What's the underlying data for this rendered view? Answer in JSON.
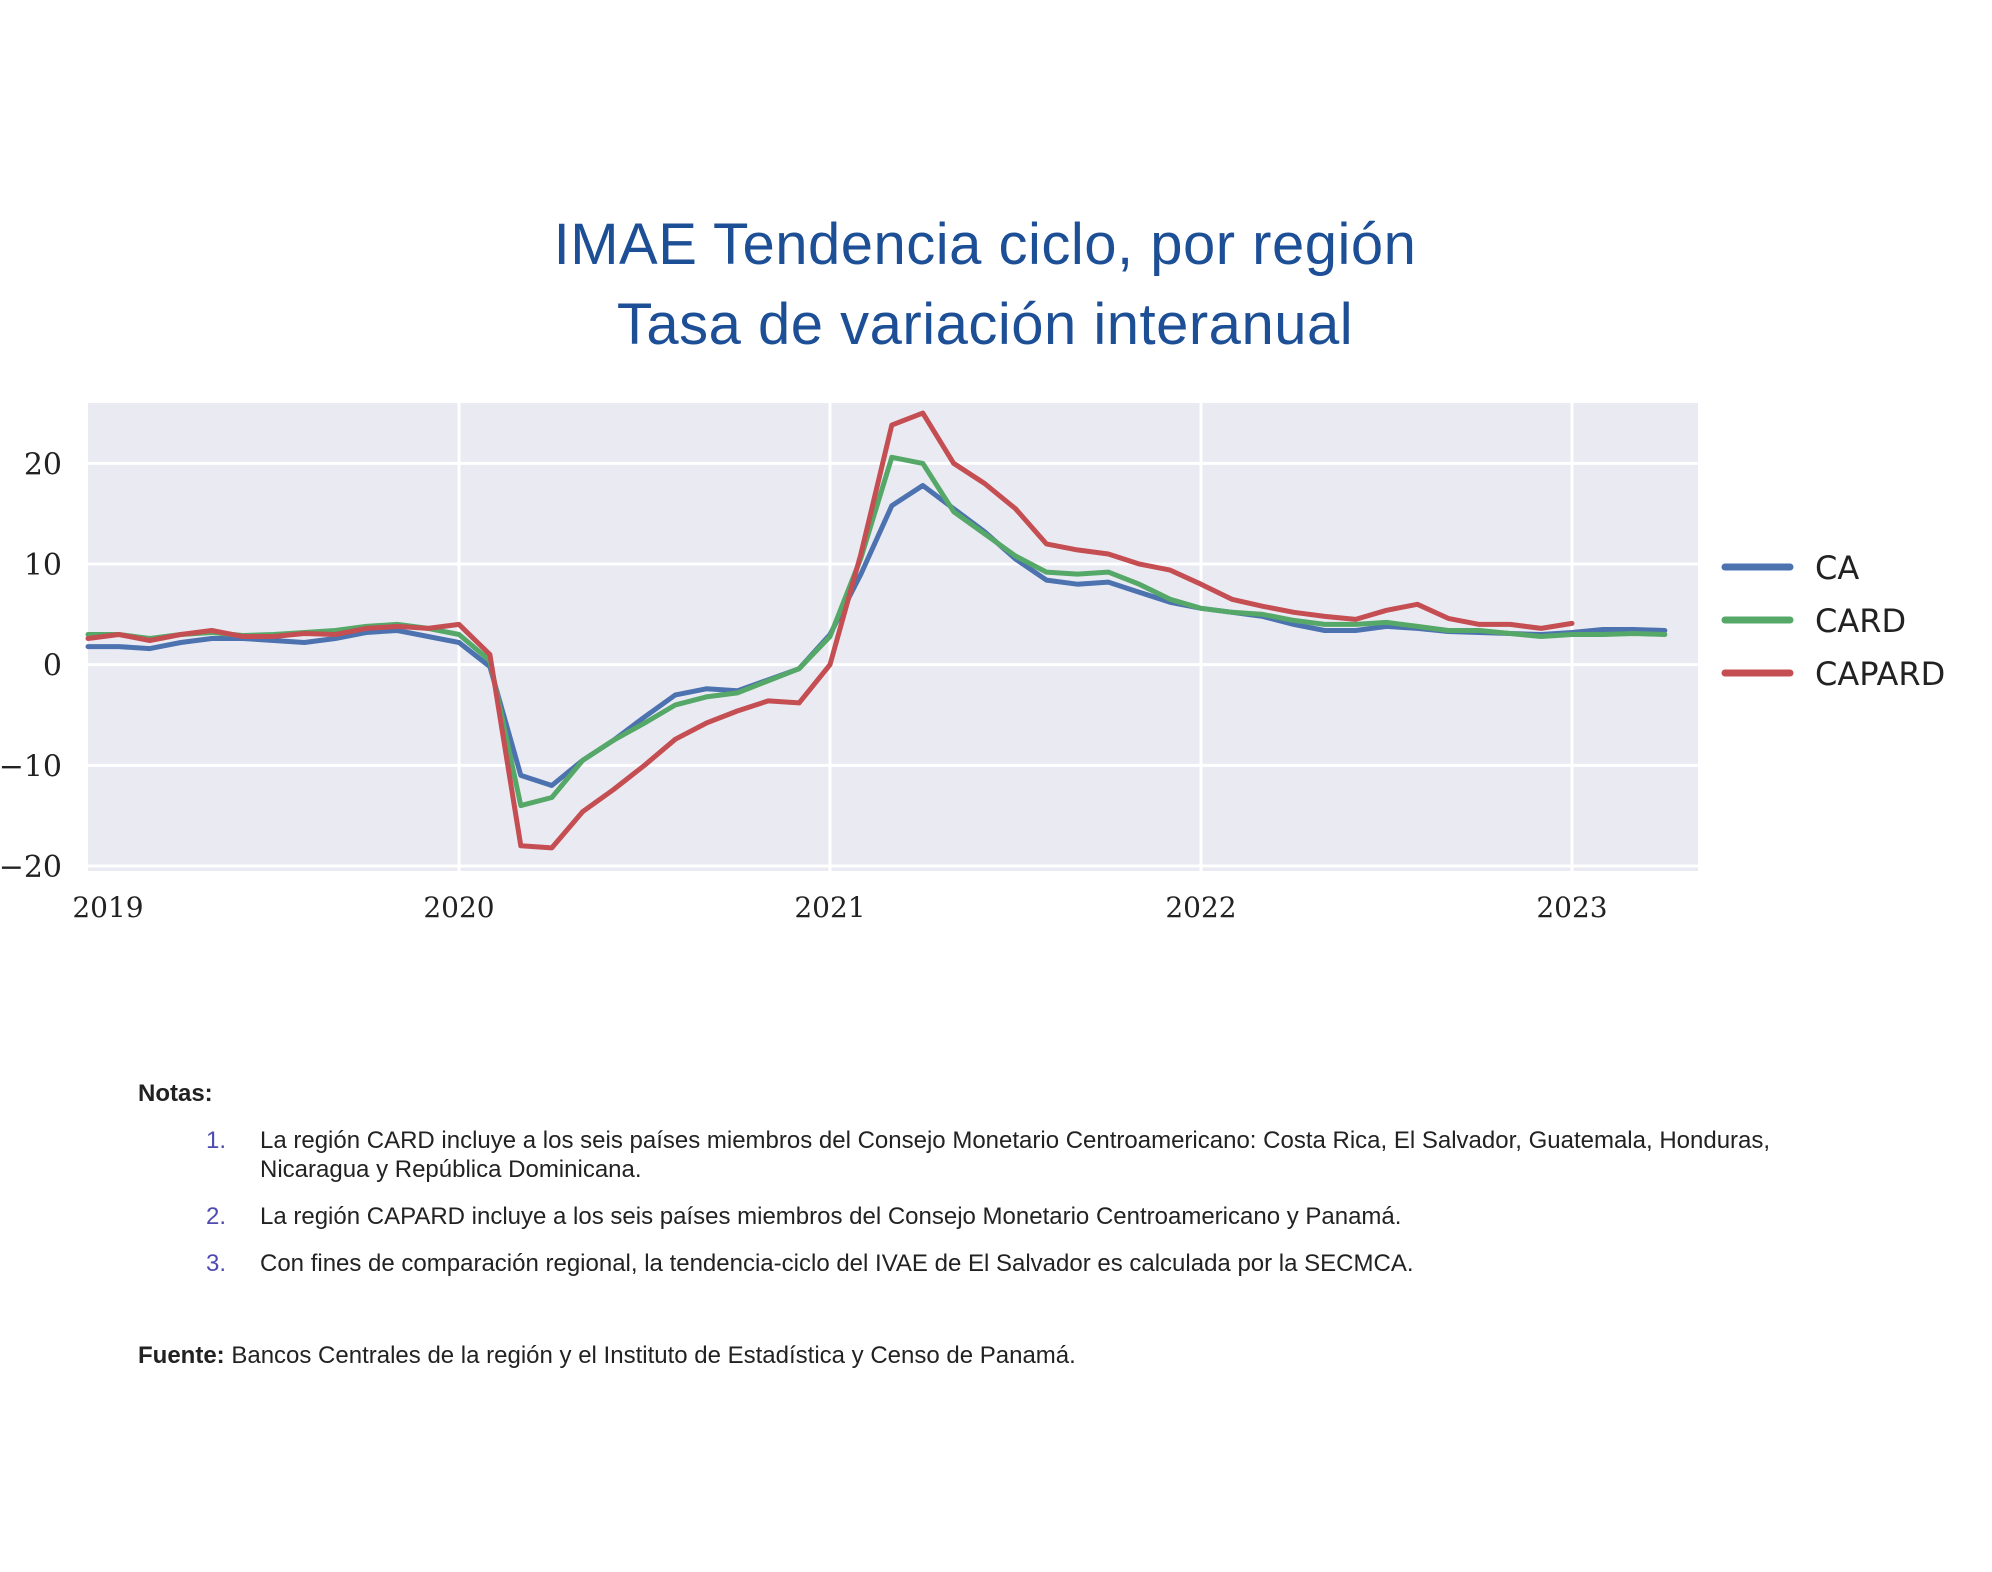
{
  "title_line1": "IMAE Tendencia ciclo, por región",
  "title_line2": "Tasa de variación interanual",
  "chart_data": {
    "type": "line",
    "x_start": "2019-01",
    "x_ticks": [
      "2019",
      "2020",
      "2021",
      "2022",
      "2023"
    ],
    "y_ticks": [
      "20",
      "10",
      "0",
      "−10",
      "−20"
    ],
    "ylim": [
      -20.5,
      26
    ],
    "grid": true,
    "legend_position": "right",
    "series": [
      {
        "name": "CA",
        "color": "#4c72b0",
        "values": [
          1.8,
          1.8,
          1.6,
          2.2,
          2.6,
          2.6,
          2.4,
          2.2,
          2.6,
          3.2,
          3.4,
          2.8,
          2.2,
          -0.2,
          -11.0,
          -12.0,
          -9.5,
          -7.5,
          -5.2,
          -3.0,
          -2.4,
          -2.6,
          -1.5,
          -0.4,
          3.0,
          9.0,
          15.8,
          17.8,
          15.5,
          13.2,
          10.5,
          8.4,
          8.0,
          8.2,
          7.2,
          6.2,
          5.6,
          5.2,
          4.8,
          4.0,
          3.4,
          3.4,
          3.8,
          3.6,
          3.3,
          3.2,
          3.1,
          3.0,
          3.2,
          3.5,
          3.5,
          3.4
        ]
      },
      {
        "name": "CARD",
        "color": "#55a868",
        "values": [
          3.0,
          3.0,
          2.6,
          3.0,
          3.2,
          2.9,
          3.0,
          3.2,
          3.4,
          3.8,
          4.0,
          3.6,
          3.0,
          0.4,
          -14.0,
          -13.2,
          -9.5,
          -7.5,
          -5.8,
          -4.0,
          -3.2,
          -2.8,
          -1.6,
          -0.4,
          2.8,
          10.6,
          20.6,
          20.0,
          15.2,
          13.0,
          10.8,
          9.2,
          9.0,
          9.2,
          8.0,
          6.5,
          5.6,
          5.2,
          5.0,
          4.4,
          4.0,
          4.0,
          4.2,
          3.8,
          3.4,
          3.4,
          3.1,
          2.8,
          3.0,
          3.0,
          3.1,
          3.0
        ]
      },
      {
        "name": "CAPARD",
        "color": "#c44e52",
        "values": [
          2.6,
          3.0,
          2.4,
          3.0,
          3.4,
          2.8,
          2.8,
          3.1,
          3.0,
          3.6,
          3.8,
          3.6,
          4.0,
          1.0,
          -18.0,
          -18.2,
          -14.6,
          -12.4,
          -10.0,
          -7.4,
          -5.8,
          -4.6,
          -3.6,
          -3.8,
          0.0,
          11.0,
          23.8,
          25.0,
          20.0,
          18.0,
          15.5,
          12.0,
          11.4,
          11.0,
          10.0,
          9.4,
          8.0,
          6.5,
          5.8,
          5.2,
          4.8,
          4.5,
          5.4,
          6.0,
          4.6,
          4.0,
          4.0,
          3.6,
          4.1
        ]
      }
    ]
  },
  "notes_heading": "Notas:",
  "notes": [
    {
      "num": "1.",
      "text": "La región CARD incluye a los seis países miembros del Consejo Monetario Centroamericano: Costa Rica, El Salvador, Guatemala, Honduras, Nicaragua y República Dominicana."
    },
    {
      "num": "2.",
      "text": "La región CAPARD incluye a los seis países miembros del Consejo Monetario Centroamericano y Panamá."
    },
    {
      "num": "3.",
      "text": "Con fines de comparación regional, la tendencia-ciclo del IVAE de El Salvador es calculada por la SECMCA."
    }
  ],
  "source_label": "Fuente:",
  "source_text": " Bancos Centrales de la región y el Instituto de Estadística y Censo de Panamá."
}
